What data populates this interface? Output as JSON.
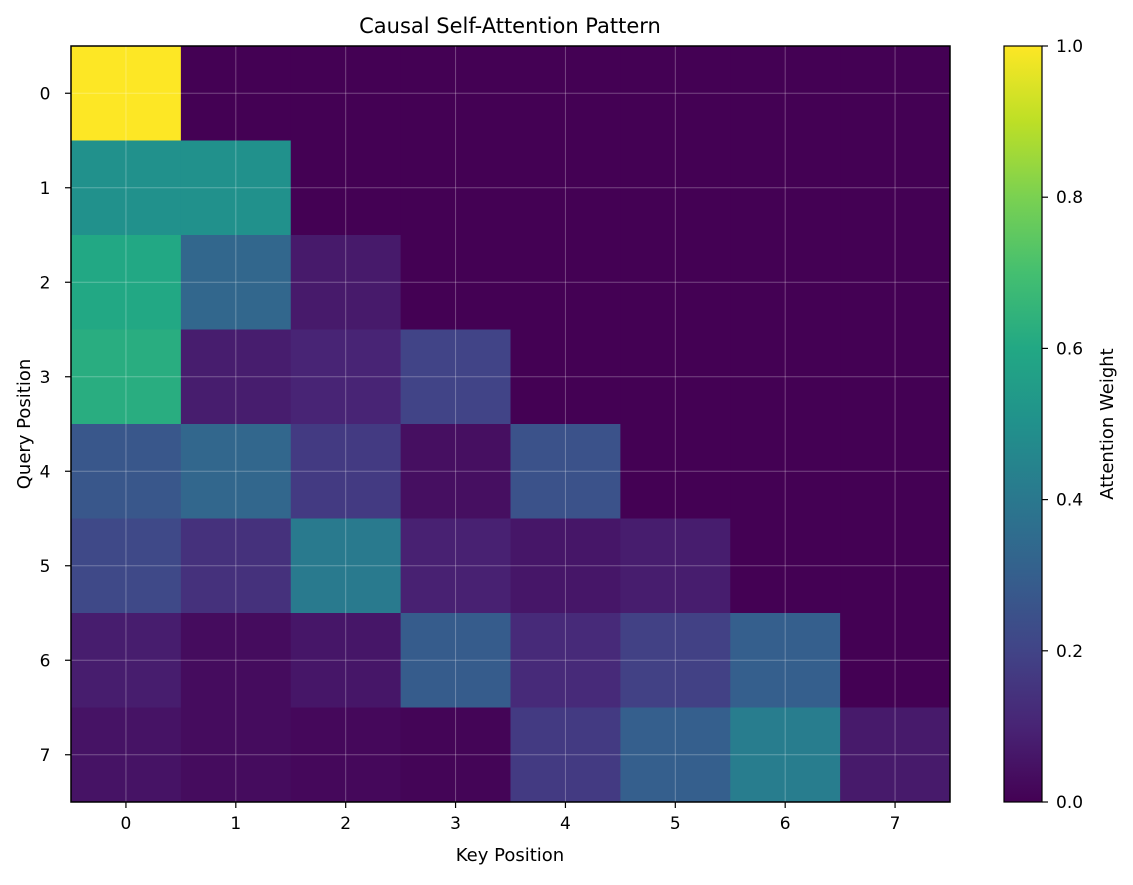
{
  "chart_data": {
    "type": "heatmap",
    "title": "Causal Self-Attention Pattern",
    "xlabel": "Key Position",
    "ylabel": "Query Position",
    "x_ticks": [
      "0",
      "1",
      "2",
      "3",
      "4",
      "5",
      "6",
      "7"
    ],
    "y_ticks": [
      "0",
      "1",
      "2",
      "3",
      "4",
      "5",
      "6",
      "7"
    ],
    "colormap": "viridis",
    "grid": true,
    "values": [
      [
        1.0,
        0.0,
        0.0,
        0.0,
        0.0,
        0.0,
        0.0,
        0.0
      ],
      [
        0.5,
        0.5,
        0.0,
        0.0,
        0.0,
        0.0,
        0.0,
        0.0
      ],
      [
        0.6,
        0.33,
        0.07,
        0.0,
        0.0,
        0.0,
        0.0,
        0.0
      ],
      [
        0.62,
        0.08,
        0.1,
        0.2,
        0.0,
        0.0,
        0.0,
        0.0
      ],
      [
        0.27,
        0.33,
        0.17,
        0.04,
        0.25,
        0.0,
        0.0,
        0.0
      ],
      [
        0.22,
        0.14,
        0.41,
        0.09,
        0.06,
        0.08,
        0.0,
        0.0
      ],
      [
        0.08,
        0.03,
        0.06,
        0.29,
        0.12,
        0.19,
        0.3,
        0.0
      ],
      [
        0.05,
        0.03,
        0.02,
        0.01,
        0.17,
        0.3,
        0.42,
        0.07
      ]
    ],
    "colorbar": {
      "label": "Attention Weight",
      "range": [
        0.0,
        1.0
      ],
      "ticks": [
        "0.0",
        "0.2",
        "0.4",
        "0.6",
        "0.8",
        "1.0"
      ]
    }
  }
}
